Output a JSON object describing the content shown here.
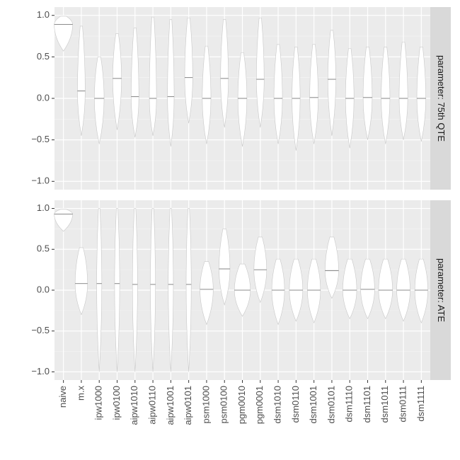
{
  "chart_data": [
    {
      "type": "violin",
      "strip": "parameter: 75th QTE",
      "mins": [
        0.57,
        -0.45,
        -0.55,
        -0.38,
        -0.47,
        -0.45,
        -0.58,
        -0.3,
        -0.55,
        -0.35,
        -0.58,
        -0.35,
        -0.55,
        -0.63,
        -0.55,
        -0.45,
        -0.6,
        -0.5,
        -0.55,
        -0.5,
        -0.52
      ],
      "medians": [
        0.89,
        0.09,
        0.0,
        0.24,
        0.02,
        0.0,
        0.02,
        0.25,
        0.0,
        0.24,
        0.0,
        0.23,
        0.0,
        0.0,
        0.01,
        0.23,
        0.0,
        0.01,
        0.0,
        0.0,
        0.0
      ],
      "maxs": [
        0.99,
        0.87,
        0.5,
        0.78,
        0.85,
        0.98,
        0.95,
        0.97,
        0.63,
        0.95,
        0.55,
        0.97,
        0.65,
        0.62,
        0.65,
        0.82,
        0.6,
        0.62,
        0.62,
        0.68,
        0.62
      ],
      "ylim": [
        -1.1,
        1.1
      ],
      "yticks": [
        {
          "value": -1,
          "label": "−1.0"
        },
        {
          "value": -0.5,
          "label": "−0.5"
        },
        {
          "value": 0,
          "label": "0.0"
        },
        0.5,
        {
          "value": 1,
          "label": "1.0"
        }
      ],
      "grid": true
    },
    {
      "type": "violin",
      "strip": "parameter: ATE",
      "categories": [
        "naive",
        "m.x",
        "ipw1000",
        "ipw0100",
        "aipw1010",
        "aipw0110",
        "aipw1001",
        "aipw0101",
        "psm1000",
        "psm0100",
        "pgm0010",
        "pgm0001",
        "dsm1010",
        "dsm0110",
        "dsm1001",
        "dsm0101",
        "dsm1110",
        "dsm1101",
        "dsm1011",
        "dsm0111",
        "dsm1111"
      ],
      "mins": [
        0.72,
        -0.3,
        -1.0,
        -1.0,
        -1.0,
        -1.0,
        -1.0,
        -1.0,
        -0.42,
        -0.18,
        -0.32,
        -0.15,
        -0.42,
        -0.38,
        -0.4,
        -0.1,
        -0.35,
        -0.35,
        -0.35,
        -0.38,
        -0.4
      ],
      "medians": [
        0.93,
        0.08,
        0.08,
        0.08,
        0.07,
        0.07,
        0.07,
        0.07,
        0.01,
        0.26,
        0.0,
        0.25,
        0.0,
        0.0,
        0.0,
        0.24,
        0.0,
        0.01,
        0.0,
        0.0,
        0.0
      ],
      "maxs": [
        0.99,
        0.52,
        1.0,
        1.0,
        1.0,
        1.0,
        1.0,
        1.0,
        0.35,
        0.75,
        0.32,
        0.65,
        0.38,
        0.38,
        0.38,
        0.65,
        0.38,
        0.38,
        0.38,
        0.38,
        0.38
      ],
      "ylim": [
        -1.1,
        1.1
      ],
      "yticks": [
        {
          "value": -1,
          "label": "−1.0"
        },
        {
          "value": -0.5,
          "label": "−0.5"
        },
        {
          "value": 0,
          "label": "0.0"
        },
        0.5,
        {
          "value": 1,
          "label": "1.0"
        }
      ],
      "grid": true
    }
  ]
}
